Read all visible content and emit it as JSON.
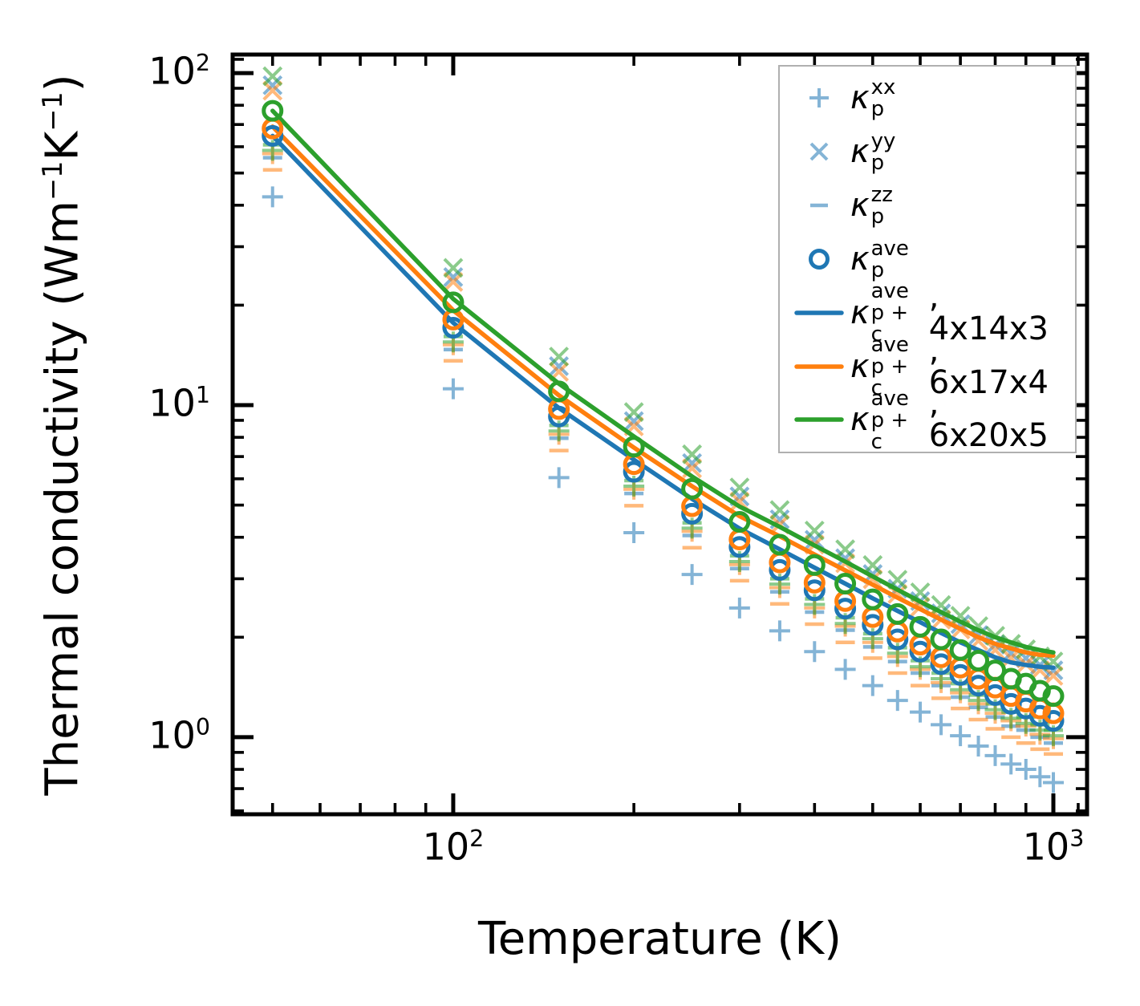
{
  "chart_data": {
    "type": "scatter+line",
    "xscale": "log",
    "yscale": "log",
    "xlabel": "Temperature (K)",
    "ylabel_parts": [
      {
        "t": "Thermal conductivity (Wm"
      },
      {
        "sup": "−1"
      },
      {
        "t": "K"
      },
      {
        "sup": "−1"
      },
      {
        "t": ")"
      }
    ],
    "xlim": [
      42.9,
      1138
    ],
    "ylim": [
      0.586,
      113.7
    ],
    "x_major_ticks": [
      {
        "value": 100,
        "base": "10",
        "exp": "2"
      },
      {
        "value": 1000,
        "base": "10",
        "exp": "3"
      }
    ],
    "x_minor_ticks": [
      50,
      60,
      70,
      80,
      90,
      200,
      300,
      400,
      500,
      600,
      700,
      800,
      900,
      1100
    ],
    "y_major_ticks": [
      {
        "value": 1,
        "base": "10",
        "exp": "0"
      },
      {
        "value": 10,
        "base": "10",
        "exp": "1"
      },
      {
        "value": 100,
        "base": "10",
        "exp": "2"
      }
    ],
    "y_minor_ticks": [
      0.6,
      0.7,
      0.8,
      0.9,
      2,
      3,
      4,
      5,
      6,
      7,
      8,
      9,
      20,
      30,
      40,
      50,
      60,
      70,
      80,
      90,
      110
    ],
    "colors": {
      "blue": "#1f77b4",
      "orange": "#ff7f0e",
      "green": "#2ca02c"
    },
    "marker_alpha": 0.55,
    "temperatures": [
      50,
      100,
      150,
      200,
      250,
      300,
      350,
      400,
      450,
      500,
      550,
      600,
      650,
      700,
      750,
      800,
      850,
      900,
      950,
      1000
    ],
    "series": [
      {
        "name": "kp-xx-4x14x3",
        "marker": "plus",
        "color": "blue",
        "faded": true,
        "values": [
          42.4,
          11.2,
          6.05,
          4.13,
          3.09,
          2.45,
          2.09,
          1.81,
          1.6,
          1.43,
          1.29,
          1.19,
          1.09,
          1.01,
          0.94,
          0.88,
          0.83,
          0.8,
          0.76,
          0.73
        ]
      },
      {
        "name": "kp-yy-4x14x3",
        "marker": "x",
        "color": "blue",
        "faded": true,
        "values": [
          91.9,
          24.3,
          13.1,
          8.95,
          6.69,
          5.31,
          4.53,
          3.93,
          3.46,
          3.1,
          2.8,
          2.57,
          2.36,
          2.19,
          2.03,
          1.9,
          1.79,
          1.73,
          1.65,
          1.59
        ]
      },
      {
        "name": "kp-zz-4x14x3",
        "marker": "dash",
        "color": "blue",
        "faded": true,
        "values": [
          55.6,
          14.7,
          7.95,
          5.42,
          4.05,
          3.22,
          2.74,
          2.38,
          2.1,
          1.87,
          1.69,
          1.56,
          1.43,
          1.32,
          1.23,
          1.15,
          1.08,
          1.05,
          1.0,
          0.96
        ]
      },
      {
        "name": "kp-xx-6x17x4",
        "marker": "plus",
        "color": "orange",
        "faded": true,
        "values": [
          57.2,
          15.2,
          8.17,
          5.58,
          4.17,
          3.31,
          2.82,
          2.45,
          2.16,
          1.93,
          1.75,
          1.6,
          1.46,
          1.36,
          1.26,
          1.18,
          1.12,
          1.08,
          1.02,
          0.99
        ]
      },
      {
        "name": "kp-yy-6x17x4",
        "marker": "x",
        "color": "orange",
        "faded": true,
        "values": [
          88.5,
          23.5,
          12.6,
          8.63,
          6.45,
          5.12,
          4.37,
          3.8,
          3.34,
          2.99,
          2.7,
          2.47,
          2.26,
          2.11,
          1.95,
          1.83,
          1.73,
          1.66,
          1.59,
          1.53
        ]
      },
      {
        "name": "kp-zz-6x17x4",
        "marker": "dash",
        "color": "orange",
        "faded": true,
        "values": [
          51.1,
          13.6,
          7.3,
          4.98,
          3.72,
          2.96,
          2.52,
          2.19,
          1.93,
          1.73,
          1.56,
          1.43,
          1.31,
          1.22,
          1.13,
          1.06,
          1.0,
          0.96,
          0.92,
          0.89
        ]
      },
      {
        "name": "kp-xx-6x20x5",
        "marker": "plus",
        "color": "green",
        "faded": true,
        "values": [
          58.5,
          15.5,
          8.36,
          5.7,
          4.26,
          3.38,
          2.89,
          2.51,
          2.2,
          1.98,
          1.79,
          1.63,
          1.5,
          1.39,
          1.29,
          1.21,
          1.14,
          1.1,
          1.05,
          1.01
        ]
      },
      {
        "name": "kp-yy-6x20x5",
        "marker": "x",
        "color": "green",
        "faded": true,
        "values": [
          97.8,
          25.9,
          14.0,
          9.53,
          7.11,
          5.65,
          4.83,
          4.19,
          3.68,
          3.3,
          2.98,
          2.73,
          2.5,
          2.32,
          2.16,
          2.02,
          1.91,
          1.84,
          1.75,
          1.69
        ]
      },
      {
        "name": "kp-zz-6x20x5",
        "marker": "dash",
        "color": "green",
        "faded": true,
        "values": [
          60.8,
          16.1,
          8.69,
          5.93,
          4.42,
          3.52,
          3.0,
          2.61,
          2.29,
          2.05,
          1.86,
          1.7,
          1.56,
          1.45,
          1.34,
          1.26,
          1.19,
          1.15,
          1.09,
          1.05
        ]
      },
      {
        "name": "kpc-ave-4x14x3-line",
        "marker": "line",
        "color": "blue",
        "faded": false,
        "values": [
          64.7,
          17.7,
          9.8,
          6.85,
          5.22,
          4.25,
          3.68,
          3.24,
          2.9,
          2.62,
          2.4,
          2.22,
          2.06,
          1.93,
          1.83,
          1.74,
          1.68,
          1.65,
          1.63,
          1.62
        ]
      },
      {
        "name": "kpc-ave-6x17x4-line",
        "marker": "line",
        "color": "orange",
        "faded": false,
        "values": [
          69.0,
          19.3,
          10.7,
          7.45,
          5.7,
          4.63,
          4.03,
          3.55,
          3.18,
          2.88,
          2.63,
          2.43,
          2.26,
          2.12,
          2.0,
          1.91,
          1.85,
          1.8,
          1.77,
          1.76
        ]
      },
      {
        "name": "kpc-ave-6x20x5-line",
        "marker": "line",
        "color": "green",
        "faded": false,
        "values": [
          77.0,
          20.9,
          11.6,
          8.05,
          6.1,
          4.95,
          4.3,
          3.78,
          3.38,
          3.05,
          2.78,
          2.56,
          2.38,
          2.23,
          2.1,
          2.0,
          1.93,
          1.87,
          1.83,
          1.8
        ]
      },
      {
        "name": "kp-ave-4x14x3",
        "marker": "circle",
        "color": "blue",
        "faded": false,
        "values": [
          64.7,
          17.1,
          9.24,
          6.3,
          4.71,
          3.74,
          3.19,
          2.77,
          2.44,
          2.18,
          1.97,
          1.81,
          1.66,
          1.54,
          1.43,
          1.34,
          1.26,
          1.22,
          1.16,
          1.12
        ]
      },
      {
        "name": "kp-ave-6x17x4",
        "marker": "circle",
        "color": "orange",
        "faded": false,
        "values": [
          68.1,
          18.1,
          9.73,
          6.64,
          4.96,
          3.94,
          3.36,
          2.92,
          2.57,
          2.3,
          2.08,
          1.9,
          1.74,
          1.62,
          1.5,
          1.41,
          1.33,
          1.28,
          1.22,
          1.18
        ]
      },
      {
        "name": "kp-ave-6x20x5",
        "marker": "circle",
        "color": "green",
        "faded": false,
        "values": [
          77.0,
          20.4,
          11.0,
          7.5,
          5.6,
          4.45,
          3.8,
          3.3,
          2.9,
          2.6,
          2.35,
          2.15,
          1.97,
          1.83,
          1.7,
          1.59,
          1.5,
          1.45,
          1.38,
          1.33
        ]
      }
    ],
    "legend": {
      "entries": [
        {
          "marker": "plus",
          "color": "blue",
          "faded": true,
          "kappa": "κ",
          "sup": "xx",
          "sub": "p",
          "suffix": ""
        },
        {
          "marker": "x",
          "color": "blue",
          "faded": true,
          "kappa": "κ",
          "sup": "yy",
          "sub": "p",
          "suffix": ""
        },
        {
          "marker": "dash",
          "color": "blue",
          "faded": true,
          "kappa": "κ",
          "sup": "zz",
          "sub": "p",
          "suffix": ""
        },
        {
          "marker": "circle",
          "color": "blue",
          "faded": false,
          "kappa": "κ",
          "sup": "ave",
          "sub": "p",
          "suffix": ""
        },
        {
          "marker": "line",
          "color": "blue",
          "faded": false,
          "kappa": "κ",
          "sup": "ave",
          "sub": "p + c",
          "suffix": ", 4x14x3"
        },
        {
          "marker": "line",
          "color": "orange",
          "faded": false,
          "kappa": "κ",
          "sup": "ave",
          "sub": "p + c",
          "suffix": ", 6x17x4"
        },
        {
          "marker": "line",
          "color": "green",
          "faded": false,
          "kappa": "κ",
          "sup": "ave",
          "sub": "p + c",
          "suffix": ", 6x20x5"
        }
      ]
    }
  }
}
